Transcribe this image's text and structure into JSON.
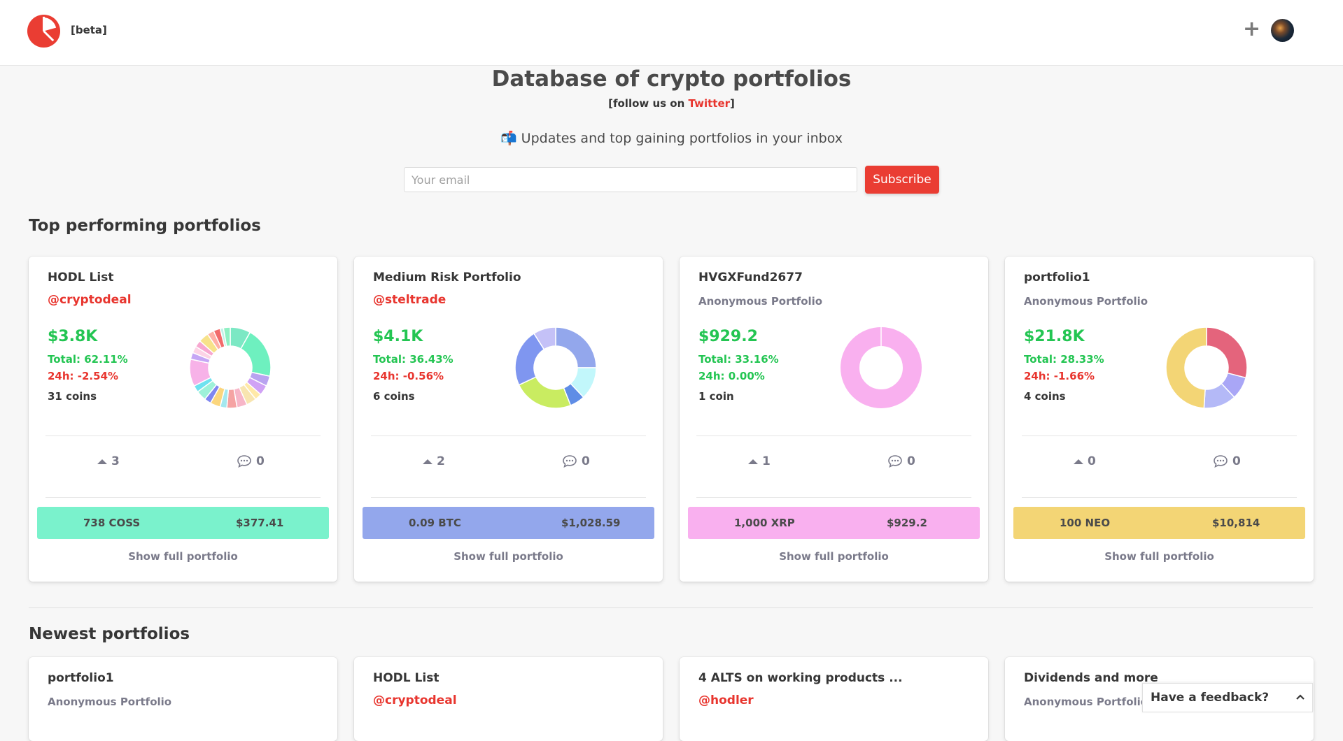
{
  "navbar": {
    "beta_label": "[beta]",
    "add_label": "+"
  },
  "hero": {
    "title": "Database of crypto portfolios",
    "follow_prefix": "[follow us on ",
    "follow_link": "Twitter",
    "follow_suffix": "]",
    "updates_text": "📬 Updates and top gaining portfolios in your inbox",
    "email_placeholder": "Your email",
    "subscribe_label": "Subscribe"
  },
  "sections": {
    "top": "Top performing portfolios",
    "newest": "Newest portfolios"
  },
  "top_portfolios": [
    {
      "name": "HODL List",
      "owner": "@cryptodeal",
      "anonymous": false,
      "value": "$3.8K",
      "total": "Total: 62.11%",
      "h24": "24h: -2.54%",
      "h24_positive": false,
      "coins": "31 coins",
      "votes": "3",
      "comments": "0",
      "top_amount": "738 COSS",
      "top_value": "$377.41",
      "top_color": "#7af2cc",
      "segments": [
        {
          "v": 6,
          "c": "#7ce8c4"
        },
        {
          "v": 15,
          "c": "#6ef0bf"
        },
        {
          "v": 3,
          "c": "#b9a3f0"
        },
        {
          "v": 3,
          "c": "#d0a2f5"
        },
        {
          "v": 2,
          "c": "#ffe9a8"
        },
        {
          "v": 3,
          "c": "#f8e5b0"
        },
        {
          "v": 3,
          "c": "#f7b6c8"
        },
        {
          "v": 3,
          "c": "#f5a3a3"
        },
        {
          "v": 2,
          "c": "#a5e8ef"
        },
        {
          "v": 3,
          "c": "#fbd67e"
        },
        {
          "v": 2,
          "c": "#7f86f0"
        },
        {
          "v": 3,
          "c": "#9ef1d9"
        },
        {
          "v": 2,
          "c": "#6fe2f0"
        },
        {
          "v": 8,
          "c": "#f7b2e8"
        },
        {
          "v": 2,
          "c": "#c5a6f5"
        },
        {
          "v": 2,
          "c": "#fcd3e6"
        },
        {
          "v": 2,
          "c": "#f7a7d0"
        },
        {
          "v": 3,
          "c": "#f7e28a"
        },
        {
          "v": 2,
          "c": "#ffb0a6"
        },
        {
          "v": 2,
          "c": "#f26b6b"
        },
        {
          "v": 1,
          "c": "#c0f2e6"
        },
        {
          "v": 2,
          "c": "#8ff0c3"
        }
      ]
    },
    {
      "name": "Medium Risk Portfolio",
      "owner": "@steltrade",
      "anonymous": false,
      "value": "$4.1K",
      "total": "Total: 36.43%",
      "h24": "24h: -0.56%",
      "h24_positive": false,
      "coins": "6 coins",
      "votes": "2",
      "comments": "0",
      "top_amount": "0.09 BTC",
      "top_value": "$1,028.59",
      "top_color": "#93a7ec",
      "segments": [
        {
          "v": 25,
          "c": "#93a7ec"
        },
        {
          "v": 13,
          "c": "#c2f7fb"
        },
        {
          "v": 6,
          "c": "#5f8de6"
        },
        {
          "v": 24,
          "c": "#c9ec61"
        },
        {
          "v": 23,
          "c": "#7f96f0"
        },
        {
          "v": 9,
          "c": "#c4c1f7"
        }
      ]
    },
    {
      "name": "HVGXFund2677",
      "owner": "Anonymous Portfolio",
      "anonymous": true,
      "value": "$929.2",
      "total": "Total: 33.16%",
      "h24": "24h: 0.00%",
      "h24_positive": true,
      "coins": "1 coin",
      "votes": "1",
      "comments": "0",
      "top_amount": "1,000 XRP",
      "top_value": "$929.2",
      "top_color": "#f9b0ef",
      "segments": [
        {
          "v": 100,
          "c": "#f9b0ef"
        }
      ]
    },
    {
      "name": "portfolio1",
      "owner": "Anonymous Portfolio",
      "anonymous": true,
      "value": "$21.8K",
      "total": "Total: 28.33%",
      "h24": "24h: -1.66%",
      "h24_positive": false,
      "coins": "4 coins",
      "votes": "0",
      "comments": "0",
      "top_amount": "100 NEO",
      "top_value": "$10,814",
      "top_color": "#f3d575",
      "segments": [
        {
          "v": 29,
          "c": "#e4647c"
        },
        {
          "v": 9,
          "c": "#a9a6f6"
        },
        {
          "v": 13,
          "c": "#b4b9f7"
        },
        {
          "v": 49,
          "c": "#f3d575"
        }
      ]
    }
  ],
  "newest_portfolios": [
    {
      "name": "portfolio1",
      "owner": "Anonymous Portfolio",
      "anonymous": true
    },
    {
      "name": "HODL List",
      "owner": "@cryptodeal",
      "anonymous": false
    },
    {
      "name": "4 ALTS on working products ...",
      "owner": "@hodler",
      "anonymous": false
    },
    {
      "name": "Dividends and more",
      "owner": "Anonymous Portfolio",
      "anonymous": true
    }
  ],
  "show_full_label": "Show full portfolio",
  "feedback_label": "Have a feedback?",
  "colors": {
    "accent": "#e8352e",
    "positive": "#23c552",
    "negative": "#e8352e"
  }
}
